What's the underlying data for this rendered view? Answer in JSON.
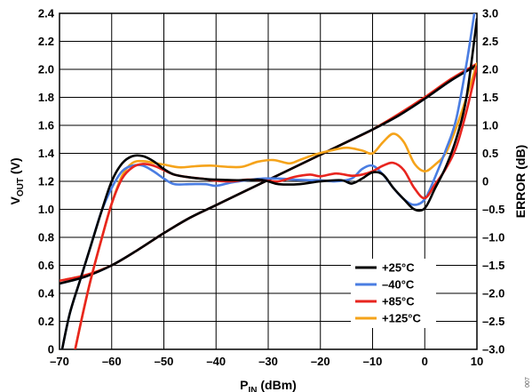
{
  "chart_data": {
    "type": "line",
    "x_axis": {
      "label_main": "P",
      "label_sub": "IN",
      "label_unit": "(dBm)",
      "range": [
        -70,
        10
      ],
      "ticks": [
        -70,
        -60,
        -50,
        -40,
        -30,
        -20,
        -10,
        0,
        10
      ],
      "tick_labels": [
        "–70",
        "–60",
        "–50",
        "–40",
        "–30",
        "–20",
        "–10",
        "0",
        "10"
      ]
    },
    "y_axis_left": {
      "label_main": "V",
      "label_sub": "OUT",
      "label_unit": "(V)",
      "range": [
        0,
        2.4
      ],
      "ticks": [
        0,
        0.2,
        0.4,
        0.6,
        0.8,
        1.0,
        1.2,
        1.4,
        1.6,
        1.8,
        2.0,
        2.2,
        2.4
      ],
      "tick_labels": [
        "0",
        "0.2",
        "0.4",
        "0.6",
        "0.8",
        "1.0",
        "1.2",
        "1.4",
        "1.6",
        "1.8",
        "2.0",
        "2.2",
        "2.4"
      ]
    },
    "y_axis_right": {
      "label": "ERROR (dB)",
      "range": [
        -3.0,
        3.0
      ],
      "ticks": [
        -3.0,
        -2.5,
        -2.0,
        -1.5,
        -1.0,
        -0.5,
        0,
        0.5,
        1.0,
        1.5,
        2.0,
        2.5,
        3.0
      ],
      "tick_labels": [
        "–3.0",
        "–2.5",
        "–2.0",
        "–1.5",
        "–1.0",
        "–0.5",
        "0",
        "0.5",
        "1.0",
        "1.5",
        "2.0",
        "2.5",
        "3.0"
      ]
    },
    "grid": true,
    "legend": {
      "placement": "bottom-right"
    },
    "series": [
      {
        "name": "+25°C",
        "color": "#000000",
        "vout": [
          [
            -70,
            0.47
          ],
          [
            -65,
            0.52
          ],
          [
            -60,
            0.6
          ],
          [
            -55,
            0.71
          ],
          [
            -50,
            0.83
          ],
          [
            -45,
            0.94
          ],
          [
            -40,
            1.03
          ],
          [
            -35,
            1.12
          ],
          [
            -30,
            1.21
          ],
          [
            -25,
            1.3
          ],
          [
            -20,
            1.39
          ],
          [
            -15,
            1.48
          ],
          [
            -10,
            1.57
          ],
          [
            -5,
            1.67
          ],
          [
            0,
            1.79
          ],
          [
            5,
            1.92
          ],
          [
            10,
            2.03
          ]
        ],
        "error": [
          [
            -69.5,
            -3.0
          ],
          [
            -68,
            -2.35
          ],
          [
            -66,
            -1.75
          ],
          [
            -64,
            -1.15
          ],
          [
            -62,
            -0.55
          ],
          [
            -60,
            0.0
          ],
          [
            -58,
            0.32
          ],
          [
            -56,
            0.45
          ],
          [
            -54,
            0.45
          ],
          [
            -52,
            0.36
          ],
          [
            -50,
            0.22
          ],
          [
            -48,
            0.12
          ],
          [
            -45,
            0.07
          ],
          [
            -42,
            0.04
          ],
          [
            -40,
            0.03
          ],
          [
            -36,
            0.02
          ],
          [
            -32,
            0.03
          ],
          [
            -30,
            0.0
          ],
          [
            -28,
            -0.05
          ],
          [
            -24,
            -0.05
          ],
          [
            -20,
            0.0
          ],
          [
            -16,
            0.02
          ],
          [
            -14,
            -0.04
          ],
          [
            -12,
            0.05
          ],
          [
            -10,
            0.16
          ],
          [
            -8,
            0.12
          ],
          [
            -6,
            -0.12
          ],
          [
            -4,
            -0.32
          ],
          [
            -2,
            -0.5
          ],
          [
            0,
            -0.48
          ],
          [
            2,
            -0.12
          ],
          [
            4,
            0.25
          ],
          [
            6,
            0.75
          ],
          [
            8,
            1.5
          ],
          [
            10,
            2.9
          ]
        ]
      },
      {
        "name": "–40°C",
        "color": "#4a7de2",
        "vout": [
          [
            -70,
            0.47
          ],
          [
            -65,
            0.52
          ],
          [
            -60,
            0.6
          ],
          [
            -55,
            0.71
          ],
          [
            -50,
            0.83
          ],
          [
            -45,
            0.94
          ],
          [
            -40,
            1.03
          ],
          [
            -35,
            1.12
          ],
          [
            -30,
            1.21
          ],
          [
            -25,
            1.3
          ],
          [
            -20,
            1.39
          ],
          [
            -15,
            1.48
          ],
          [
            -10,
            1.57
          ],
          [
            -5,
            1.67
          ],
          [
            0,
            1.79
          ],
          [
            5,
            1.92
          ],
          [
            10,
            2.03
          ]
        ],
        "error": [
          [
            -69.5,
            -3.0
          ],
          [
            -68,
            -2.35
          ],
          [
            -66,
            -1.75
          ],
          [
            -64,
            -1.15
          ],
          [
            -62,
            -0.55
          ],
          [
            -60,
            -0.12
          ],
          [
            -58,
            0.18
          ],
          [
            -56,
            0.28
          ],
          [
            -54,
            0.28
          ],
          [
            -52,
            0.18
          ],
          [
            -50,
            0.05
          ],
          [
            -48,
            -0.05
          ],
          [
            -45,
            -0.05
          ],
          [
            -42,
            -0.05
          ],
          [
            -40,
            -0.08
          ],
          [
            -37,
            -0.02
          ],
          [
            -34,
            0.02
          ],
          [
            -31,
            0.05
          ],
          [
            -28,
            0.05
          ],
          [
            -25,
            0.03
          ],
          [
            -22,
            0.02
          ],
          [
            -20,
            0.02
          ],
          [
            -17,
            0.0
          ],
          [
            -14,
            0.05
          ],
          [
            -12,
            0.22
          ],
          [
            -10,
            0.28
          ],
          [
            -8,
            0.12
          ],
          [
            -6,
            -0.12
          ],
          [
            -4,
            -0.32
          ],
          [
            -2,
            -0.42
          ],
          [
            0,
            -0.32
          ],
          [
            2,
            0.08
          ],
          [
            4,
            0.55
          ],
          [
            6,
            1.1
          ],
          [
            8,
            2.1
          ],
          [
            9.5,
            3.0
          ]
        ]
      },
      {
        "name": "+85°C",
        "color": "#e8251f",
        "vout": [
          [
            -70,
            0.49
          ],
          [
            -65,
            0.53
          ],
          [
            -60,
            0.6
          ],
          [
            -55,
            0.71
          ],
          [
            -50,
            0.83
          ],
          [
            -45,
            0.94
          ],
          [
            -40,
            1.03
          ],
          [
            -35,
            1.12
          ],
          [
            -30,
            1.21
          ],
          [
            -25,
            1.3
          ],
          [
            -20,
            1.39
          ],
          [
            -15,
            1.48
          ],
          [
            -10,
            1.57
          ],
          [
            -5,
            1.68
          ],
          [
            0,
            1.8
          ],
          [
            5,
            1.93
          ],
          [
            10,
            2.04
          ]
        ],
        "error": [
          [
            -67,
            -3.0
          ],
          [
            -65.5,
            -2.35
          ],
          [
            -64,
            -1.75
          ],
          [
            -62,
            -1.05
          ],
          [
            -60,
            -0.4
          ],
          [
            -58,
            0.05
          ],
          [
            -56,
            0.25
          ],
          [
            -54,
            0.31
          ],
          [
            -52,
            0.28
          ],
          [
            -50,
            0.2
          ],
          [
            -48,
            0.12
          ],
          [
            -45,
            0.07
          ],
          [
            -42,
            0.04
          ],
          [
            -40,
            0.01
          ],
          [
            -37,
            0.0
          ],
          [
            -34,
            0.03
          ],
          [
            -31,
            0.02
          ],
          [
            -28,
            0.0
          ],
          [
            -25,
            0.08
          ],
          [
            -22,
            0.12
          ],
          [
            -20,
            0.09
          ],
          [
            -17,
            0.14
          ],
          [
            -14,
            0.1
          ],
          [
            -12,
            0.12
          ],
          [
            -10,
            0.18
          ],
          [
            -8,
            0.28
          ],
          [
            -6,
            0.33
          ],
          [
            -4,
            0.2
          ],
          [
            -2,
            -0.12
          ],
          [
            0,
            -0.3
          ],
          [
            2,
            -0.05
          ],
          [
            4,
            0.22
          ],
          [
            6,
            0.6
          ],
          [
            8,
            1.25
          ],
          [
            10,
            2.05
          ]
        ]
      },
      {
        "name": "+125°C",
        "color": "#f5a31a",
        "vout": [
          [
            -70,
            0.49
          ],
          [
            -65,
            0.53
          ],
          [
            -60,
            0.6
          ],
          [
            -55,
            0.71
          ],
          [
            -50,
            0.83
          ],
          [
            -45,
            0.94
          ],
          [
            -40,
            1.03
          ],
          [
            -35,
            1.12
          ],
          [
            -30,
            1.21
          ],
          [
            -25,
            1.3
          ],
          [
            -20,
            1.39
          ],
          [
            -15,
            1.48
          ],
          [
            -10,
            1.57
          ],
          [
            -5,
            1.68
          ],
          [
            0,
            1.8
          ],
          [
            5,
            1.93
          ],
          [
            10,
            2.04
          ]
        ],
        "error": [
          [
            -67,
            -3.0
          ],
          [
            -65.5,
            -2.35
          ],
          [
            -64,
            -1.75
          ],
          [
            -62,
            -1.05
          ],
          [
            -60,
            -0.4
          ],
          [
            -58,
            0.1
          ],
          [
            -56,
            0.33
          ],
          [
            -54,
            0.36
          ],
          [
            -52,
            0.33
          ],
          [
            -50,
            0.3
          ],
          [
            -47,
            0.25
          ],
          [
            -44,
            0.27
          ],
          [
            -41,
            0.28
          ],
          [
            -38,
            0.26
          ],
          [
            -35,
            0.26
          ],
          [
            -32,
            0.35
          ],
          [
            -29,
            0.38
          ],
          [
            -26,
            0.32
          ],
          [
            -24,
            0.38
          ],
          [
            -21,
            0.48
          ],
          [
            -18,
            0.55
          ],
          [
            -15,
            0.6
          ],
          [
            -12,
            0.55
          ],
          [
            -10,
            0.5
          ],
          [
            -8,
            0.7
          ],
          [
            -6,
            0.85
          ],
          [
            -4,
            0.7
          ],
          [
            -2,
            0.32
          ],
          [
            0,
            0.18
          ],
          [
            2,
            0.3
          ],
          [
            4,
            0.5
          ],
          [
            6,
            0.95
          ],
          [
            8,
            1.5
          ],
          [
            10,
            2.1
          ]
        ]
      }
    ],
    "figure_code": "007"
  }
}
